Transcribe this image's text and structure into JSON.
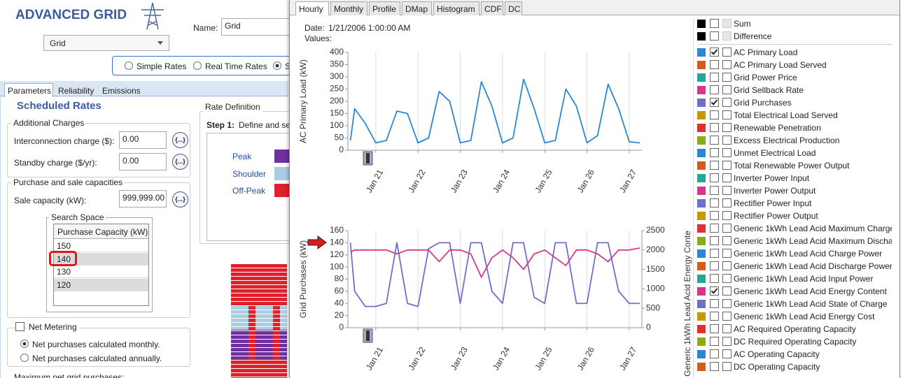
{
  "app": {
    "title": "ADVANCED GRID",
    "component_select": "Grid",
    "name_label": "Name:",
    "name_value": "Grid",
    "rate_options": [
      {
        "label": "Simple Rates",
        "selected": false
      },
      {
        "label": "Real Time Rates",
        "selected": false
      },
      {
        "label": "S",
        "selected": true
      }
    ],
    "tabs": [
      "Parameters",
      "Reliability",
      "Emissions"
    ],
    "section_title": "Scheduled Rates",
    "button_label": "{...}",
    "additional_charges": {
      "title": "Additional Charges",
      "fields": [
        {
          "label": "Interconnection charge ($):",
          "value": "0.00"
        },
        {
          "label": "Standby charge ($/yr):",
          "value": "0.00"
        }
      ]
    },
    "capacities": {
      "title": "Purchase and sale capacities",
      "sale_label": "Sale capacity (kW):",
      "sale_value": "999,999.00",
      "search_space_title": "Search Space",
      "column": "Purchase Capacity (kW)",
      "rows": [
        "150",
        "140",
        "130",
        "120"
      ]
    },
    "net_metering": {
      "label": "Net Metering",
      "options": [
        {
          "label": "Net purchases calculated monthly.",
          "selected": true
        },
        {
          "label": "Net purchases calculated annually.",
          "selected": false
        }
      ]
    },
    "max_purchases_label": "Maximum net grid purchases:",
    "rate_definition": {
      "title": "Rate Definition",
      "step_label": "Step 1:",
      "step_text": "Define and se",
      "rates": [
        {
          "name": "Peak",
          "color": "#7030a0"
        },
        {
          "name": "Shoulder",
          "color": "#a9cde3"
        },
        {
          "name": "Off-Peak",
          "color": "#e0202a"
        }
      ]
    }
  },
  "results": {
    "tabs": [
      "Hourly",
      "Monthly",
      "Profile",
      "DMap",
      "Histogram",
      "CDF",
      "DC"
    ],
    "date_label": "Date:",
    "date_value": "1/21/2006 1:00:00 AM",
    "values_label": "Values:",
    "totals": [
      {
        "label": "Sum",
        "color": "#000000",
        "checked": false
      },
      {
        "label": "Difference",
        "color": "#000000",
        "checked": false
      }
    ],
    "legend": [
      {
        "label": "AC Primary Load",
        "color": "#2b87d1",
        "checked": true
      },
      {
        "label": "AC Primary Load Served",
        "color": "#d55b1c",
        "checked": false
      },
      {
        "label": "Grid Power Price",
        "color": "#26a69a",
        "checked": false
      },
      {
        "label": "Grid Sellback Rate",
        "color": "#d6378b",
        "checked": false
      },
      {
        "label": "Grid Purchases",
        "color": "#6f6fc9",
        "checked": true
      },
      {
        "label": "Total Electrical Load Served",
        "color": "#c39a00",
        "checked": false
      },
      {
        "label": "Renewable Penetration",
        "color": "#e03030",
        "checked": false
      },
      {
        "label": "Excess Electrical Production",
        "color": "#8aab14",
        "checked": false
      },
      {
        "label": "Unmet Electrical Load",
        "color": "#2b87d1",
        "checked": false
      },
      {
        "label": "Total Renewable Power Output",
        "color": "#d55b1c",
        "checked": false
      },
      {
        "label": "Inverter Power Input",
        "color": "#26a69a",
        "checked": false
      },
      {
        "label": "Inverter Power Output",
        "color": "#d6378b",
        "checked": false
      },
      {
        "label": "Rectifier Power Input",
        "color": "#6f6fc9",
        "checked": false
      },
      {
        "label": "Rectifier Power Output",
        "color": "#c39a00",
        "checked": false
      },
      {
        "label": "Generic 1kWh Lead Acid Maximum Charge",
        "color": "#e03030",
        "checked": false
      },
      {
        "label": "Generic 1kWh Lead Acid Maximum Discha",
        "color": "#8aab14",
        "checked": false
      },
      {
        "label": "Generic 1kWh Lead Acid Charge Power",
        "color": "#2b87d1",
        "checked": false
      },
      {
        "label": "Generic 1kWh Lead Acid Discharge Power",
        "color": "#d55b1c",
        "checked": false
      },
      {
        "label": "Generic 1kWh Lead Acid Input Power",
        "color": "#26a69a",
        "checked": false
      },
      {
        "label": "Generic 1kWh Lead Acid Energy Content",
        "color": "#d6378b",
        "checked": true
      },
      {
        "label": "Generic 1kWh Lead Acid State of Charge",
        "color": "#6f6fc9",
        "checked": false
      },
      {
        "label": "Generic 1kWh Lead Acid Energy Cost",
        "color": "#c39a00",
        "checked": false
      },
      {
        "label": "AC Required Operating Capacity",
        "color": "#e03030",
        "checked": false
      },
      {
        "label": "DC Required Operating Capacity",
        "color": "#8aab14",
        "checked": false
      },
      {
        "label": "AC Operating Capacity",
        "color": "#2b87d1",
        "checked": false
      },
      {
        "label": "DC Operating Capacity",
        "color": "#d55b1c",
        "checked": false
      }
    ]
  },
  "chart_data": [
    {
      "type": "line",
      "y_label": "AC Primary Load (kW)",
      "x": [
        20.4,
        20.5,
        20.75,
        21,
        21.25,
        21.5,
        21.75,
        22,
        22.25,
        22.5,
        22.75,
        23,
        23.25,
        23.5,
        23.75,
        24,
        24.25,
        24.5,
        24.75,
        25,
        25.25,
        25.5,
        25.75,
        26,
        26.25,
        26.5,
        26.75,
        27,
        27.25
      ],
      "xlim": [
        20.34,
        27.3
      ],
      "xticks": [
        {
          "value": 21,
          "label": "Jan 21"
        },
        {
          "value": 22,
          "label": "Jan 22"
        },
        {
          "value": 23,
          "label": "Jan 23"
        },
        {
          "value": 24,
          "label": "Jan 24"
        },
        {
          "value": 25,
          "label": "Jan 25"
        },
        {
          "value": 26,
          "label": "Jan 26"
        },
        {
          "value": 27,
          "label": "Jan 27"
        }
      ],
      "ylim": [
        0,
        400
      ],
      "yticks": [
        0,
        50,
        100,
        150,
        200,
        250,
        300,
        350,
        400
      ],
      "grid": true,
      "series": [
        {
          "color": "#2b87d1",
          "values": [
            40,
            170,
            110,
            30,
            40,
            160,
            150,
            30,
            50,
            240,
            200,
            30,
            40,
            280,
            180,
            30,
            50,
            290,
            170,
            30,
            40,
            250,
            180,
            30,
            60,
            270,
            170,
            35,
            30
          ]
        }
      ]
    },
    {
      "type": "line",
      "y_label": "Grid Purchases (kW)",
      "y2_label": "Generic 1kWh Lead Acid Energy Conte",
      "x": [
        20.4,
        20.5,
        20.75,
        21,
        21.25,
        21.5,
        21.75,
        22,
        22.25,
        22.5,
        22.75,
        23,
        23.25,
        23.5,
        23.75,
        24,
        24.25,
        24.5,
        24.75,
        25,
        25.25,
        25.5,
        25.75,
        26,
        26.25,
        26.5,
        26.75,
        27,
        27.25
      ],
      "xlim": [
        20.34,
        27.3
      ],
      "xticks": [
        {
          "value": 21,
          "label": "Jan 21"
        },
        {
          "value": 22,
          "label": "Jan 22"
        },
        {
          "value": 23,
          "label": "Jan 23"
        },
        {
          "value": 24,
          "label": "Jan 24"
        },
        {
          "value": 25,
          "label": "Jan 25"
        },
        {
          "value": 26,
          "label": "Jan 26"
        },
        {
          "value": 27,
          "label": "Jan 27"
        }
      ],
      "ylim": [
        0,
        160
      ],
      "yticks": [
        0,
        20,
        40,
        60,
        80,
        100,
        120,
        140,
        160
      ],
      "y2lim": [
        0,
        2500
      ],
      "y2ticks": [
        0,
        500,
        1000,
        1500,
        2000,
        2500
      ],
      "grid": true,
      "series": [
        {
          "color": "#6f6fc9",
          "values": [
            140,
            60,
            35,
            35,
            40,
            140,
            40,
            35,
            130,
            140,
            140,
            40,
            140,
            140,
            60,
            40,
            140,
            140,
            50,
            40,
            140,
            140,
            40,
            40,
            140,
            140,
            60,
            40,
            40
          ]
        },
        {
          "color": "#d6378b",
          "axis": "y2",
          "values": [
            1950,
            2000,
            2000,
            2000,
            2000,
            1900,
            2000,
            2000,
            2000,
            1700,
            2000,
            2000,
            1900,
            1300,
            1800,
            2000,
            1800,
            1500,
            1900,
            2000,
            1800,
            1600,
            2000,
            2000,
            1900,
            1700,
            2000,
            2000,
            2050
          ]
        }
      ]
    }
  ]
}
